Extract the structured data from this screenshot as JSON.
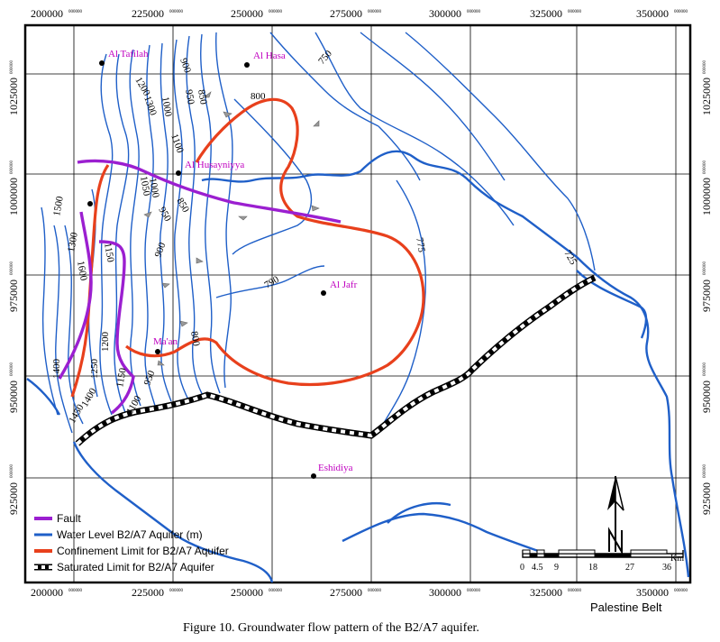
{
  "figure_caption": "Figure 10. Groundwater flow pattern of the B2/A7 aquifer.",
  "region_label": "Palestine Belt",
  "grid": {
    "x_ticks": [
      {
        "value": "200000",
        "sup": "000000"
      },
      {
        "value": "225000",
        "sup": "000000"
      },
      {
        "value": "250000",
        "sup": "000000"
      },
      {
        "value": "275000",
        "sup": "000000"
      },
      {
        "value": "300000",
        "sup": "000000"
      },
      {
        "value": "325000",
        "sup": "000000"
      },
      {
        "value": "350000",
        "sup": "000000"
      }
    ],
    "y_ticks": [
      {
        "value": "1025000",
        "sup": "000000"
      },
      {
        "value": "1000000",
        "sup": "000000"
      },
      {
        "value": "975000",
        "sup": "000000"
      },
      {
        "value": "950000",
        "sup": "000000"
      },
      {
        "value": "925000",
        "sup": "000000"
      }
    ]
  },
  "towns": [
    {
      "name": "Al Tafilah"
    },
    {
      "name": "Al Hasa"
    },
    {
      "name": "Al Husayniyya"
    },
    {
      "name": "Al Jafr"
    },
    {
      "name": "Ma'an"
    },
    {
      "name": "Eshidiya"
    }
  ],
  "contour_labels": [
    "1200",
    "1300",
    "1000",
    "900",
    "950",
    "850",
    "800",
    "750",
    "1100",
    "1050",
    "1000",
    "1500",
    "1300",
    "1150",
    "1600",
    "1200",
    "1400",
    "1250",
    "1150",
    "1450",
    "1400",
    "1100",
    "950",
    "900",
    "850",
    "800",
    "790",
    "775",
    "725",
    "950"
  ],
  "legend": {
    "fault": "Fault",
    "water_level": "Water Level B2/A7 Aquifer (m)",
    "confinement": "Confinement Limit for B2/A7 Aquifer",
    "saturated": "Saturated Limit for B2/A7 Aquifer"
  },
  "scale_bar": {
    "unit": "Km",
    "labels": [
      "0",
      "4.5",
      "9",
      "18",
      "27",
      "36"
    ]
  },
  "colors": {
    "fault": "#9b1fd0",
    "water_level": "#1f5fc8",
    "confinement": "#e8401c",
    "saturated": "#000000",
    "town_label": "#c000c0"
  }
}
